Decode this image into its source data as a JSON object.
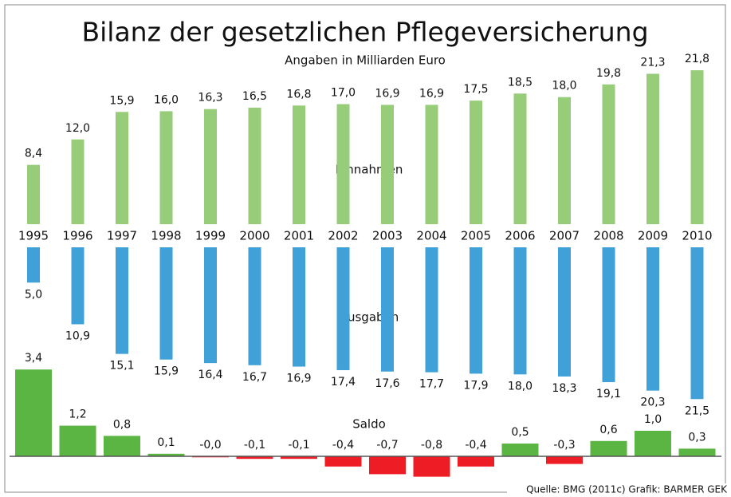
{
  "chart_data": {
    "type": "bar",
    "title": "Bilanz der gesetzlichen Pflegeversicherung",
    "subtitle": "Angaben in Milliarden Euro",
    "source": "Quelle: BMG (2011c)  Grafik: BARMER GEK",
    "categories": [
      "1995",
      "1996",
      "1997",
      "1998",
      "1999",
      "2000",
      "2001",
      "2002",
      "2003",
      "2004",
      "2005",
      "2006",
      "2007",
      "2008",
      "2009",
      "2010"
    ],
    "series": [
      {
        "name": "Einnahmen",
        "color": "#97cd78",
        "values": [
          8.4,
          12.0,
          15.9,
          16.0,
          16.3,
          16.5,
          16.8,
          17.0,
          16.9,
          16.9,
          17.5,
          18.5,
          18.0,
          19.8,
          21.3,
          21.8
        ],
        "value_labels": [
          "8,4",
          "12,0",
          "15,9",
          "16,0",
          "16,3",
          "16,5",
          "16,8",
          "17,0",
          "16,9",
          "16,9",
          "17,5",
          "18,5",
          "18,0",
          "19,8",
          "21,3",
          "21,8"
        ]
      },
      {
        "name": "Ausgaben",
        "color": "#3fa1d8",
        "values": [
          5.0,
          10.9,
          15.1,
          15.9,
          16.4,
          16.7,
          16.9,
          17.4,
          17.6,
          17.7,
          17.9,
          18.0,
          18.3,
          19.1,
          20.3,
          21.5
        ],
        "value_labels": [
          "5,0",
          "10,9",
          "15,1",
          "15,9",
          "16,4",
          "16,7",
          "16,9",
          "17,4",
          "17,6",
          "17,7",
          "17,9",
          "18,0",
          "18,3",
          "19,1",
          "20,3",
          "21,5"
        ]
      },
      {
        "name": "Saldo",
        "color": "#5ab543",
        "negative_color": "#ee1c25",
        "values": [
          3.4,
          1.2,
          0.8,
          0.1,
          -0.04,
          -0.1,
          -0.1,
          -0.4,
          -0.7,
          -0.8,
          -0.4,
          0.5,
          -0.3,
          0.6,
          1.0,
          0.3
        ],
        "value_labels": [
          "3,4",
          "1,2",
          "0,8",
          "0,1",
          "-0,0",
          "-0,1",
          "-0,1",
          "-0,4",
          "-0,7",
          "-0,8",
          "-0,4",
          "0,5",
          "-0,3",
          "0,6",
          "1,0",
          "0,3"
        ]
      }
    ]
  }
}
